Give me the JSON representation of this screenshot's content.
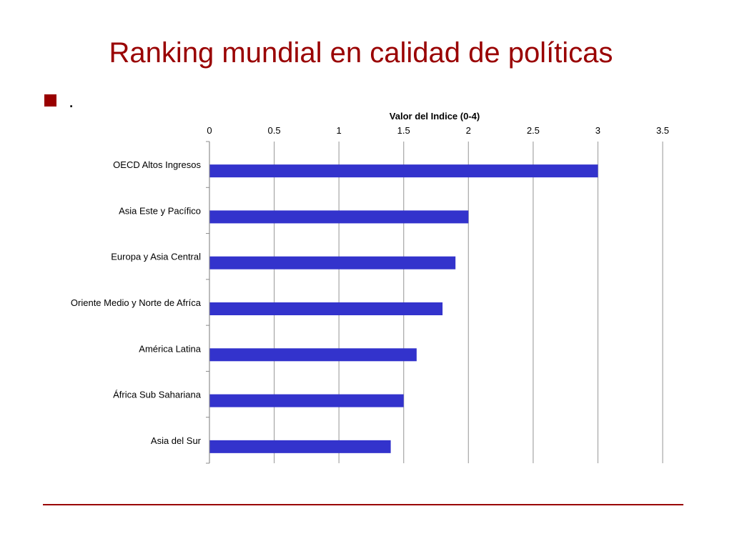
{
  "slide": {
    "title": "Ranking mundial en calidad de políticas",
    "bullet_text": "."
  },
  "colors": {
    "title": "#990000",
    "bullet": "#990000",
    "bar": "#3333cc",
    "gridline": "#a6a6a6",
    "rule": "#990000"
  },
  "chart_data": {
    "type": "bar",
    "orientation": "horizontal",
    "title": "",
    "xlabel": "Valor del Indice (0-4)",
    "ylabel": "",
    "xlabel_position": "top",
    "xlim": [
      0,
      3.5
    ],
    "xticks": [
      0,
      0.5,
      1,
      1.5,
      2,
      2.5,
      3,
      3.5
    ],
    "xtick_labels": [
      "0",
      "0.5",
      "1",
      "1.5",
      "2",
      "2.5",
      "3",
      "3.5"
    ],
    "grid": true,
    "legend": "none",
    "categories": [
      "OECD Altos Ingresos",
      "Asia Este y Pacífico",
      "Europa y Asia Central",
      "Oriente Medio y Norte de Afríca",
      "América Latina",
      "África Sub Sahariana",
      "Asia del Sur"
    ],
    "values": [
      3.0,
      2.0,
      1.9,
      1.8,
      1.6,
      1.5,
      1.4
    ]
  }
}
